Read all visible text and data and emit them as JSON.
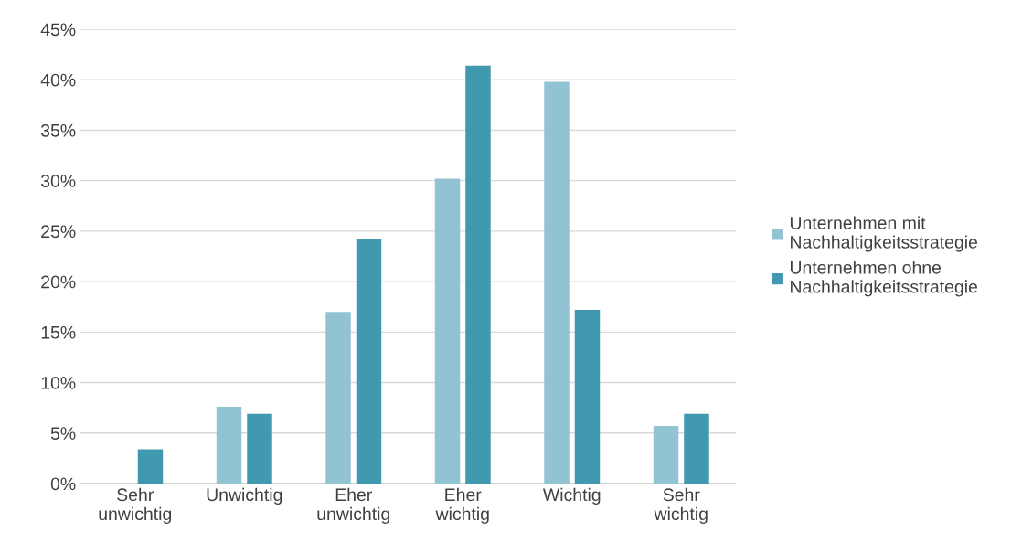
{
  "chart_data": {
    "type": "bar",
    "categories": [
      "Sehr\nunwichtig",
      "Unwichtig",
      "Eher\nunwichtig",
      "Eher\nwichtig",
      "Wichtig",
      "Sehr\nwichtig"
    ],
    "series": [
      {
        "name": "Unternehmen mit\nNachhaltigkeitsstrategie",
        "color": "#92c3d3",
        "values": [
          null,
          7.6,
          17.0,
          30.2,
          39.8,
          5.7
        ]
      },
      {
        "name": "Unternehmen ohne\nNachhaltigkeitsstrategie",
        "color": "#4199b0",
        "values": [
          3.4,
          6.9,
          24.2,
          41.4,
          17.2,
          6.9
        ]
      }
    ],
    "ylim": [
      0,
      45
    ],
    "yticks": [
      {
        "value": 0,
        "label": "0%"
      },
      {
        "value": 5,
        "label": "5%"
      },
      {
        "value": 10,
        "label": "10%"
      },
      {
        "value": 15,
        "label": "15%"
      },
      {
        "value": 20,
        "label": "20%"
      },
      {
        "value": 25,
        "label": "25%"
      },
      {
        "value": 30,
        "label": "30%"
      },
      {
        "value": 35,
        "label": "35%"
      },
      {
        "value": 40,
        "label": "40%"
      },
      {
        "value": 45,
        "label": "45%"
      }
    ],
    "grid": "y",
    "legend": "right"
  }
}
